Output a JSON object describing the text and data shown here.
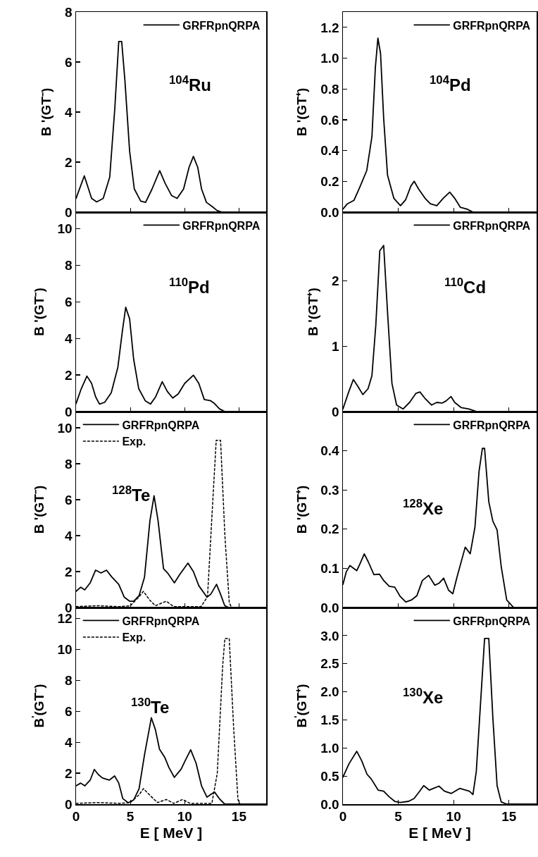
{
  "chart_data": [
    {
      "type": "line",
      "ylabel": "B '(GT⁻)",
      "annotations": [
        "$^{104}$Ru"
      ],
      "xlim": [
        0,
        17.5
      ],
      "xticks": [
        0,
        5,
        10,
        15
      ],
      "ylim": [
        0,
        8
      ],
      "yticks": [
        0,
        2,
        4,
        6,
        8
      ],
      "tick_labels": "y",
      "legend": "top right",
      "grid": false,
      "line_style": "solid",
      "series": [
        {
          "name": "GRFRpnQRPA",
          "color": "#000000",
          "x": [
            0,
            0.76,
            1.43,
            1.9,
            2.5,
            3.1,
            3.57,
            3.93,
            4.2,
            4.5,
            4.93,
            5.36,
            5.95,
            6.4,
            7.0,
            7.7,
            8.2,
            8.8,
            9.3,
            9.9,
            10.4,
            10.8,
            11.2,
            11.55,
            12.0,
            12.5,
            13.0,
            13.45,
            17.5
          ],
          "values": [
            0.55,
            1.45,
            0.55,
            0.41,
            0.55,
            1.4,
            4.17,
            6.82,
            6.82,
            5.25,
            2.44,
            0.93,
            0.44,
            0.39,
            0.93,
            1.66,
            1.15,
            0.66,
            0.55,
            0.93,
            1.79,
            2.23,
            1.79,
            0.93,
            0.39,
            0.23,
            0.06,
            0,
            0
          ]
        }
      ]
    },
    {
      "type": "line",
      "ylabel": "B '(GT⁺)",
      "annotations": [
        "$^{104}$Pd"
      ],
      "xlim": [
        0,
        17.5
      ],
      "xticks": [
        0,
        5,
        10,
        15
      ],
      "ylim": [
        0,
        1.3
      ],
      "yticks": [
        {
          "value": 0,
          "label": "0.0"
        },
        0.2,
        0.4,
        0.6,
        0.8,
        {
          "value": 1,
          "label": "1.0"
        },
        1.2
      ],
      "tick_labels": "y",
      "legend": "top right",
      "grid": false,
      "line_style": "solid",
      "series": [
        {
          "name": "GRFRpnQRPA",
          "color": "#000000",
          "x": [
            0,
            0.4,
            1.0,
            1.57,
            2.15,
            2.62,
            2.93,
            3.16,
            3.4,
            3.68,
            4.03,
            4.6,
            5.2,
            5.67,
            6.14,
            6.44,
            6.84,
            7.42,
            7.9,
            8.48,
            9.06,
            9.65,
            10.1,
            10.6,
            11.2,
            11.76,
            17.5
          ],
          "values": [
            0.02,
            0.054,
            0.077,
            0.17,
            0.27,
            0.49,
            0.94,
            1.13,
            1.03,
            0.61,
            0.24,
            0.09,
            0.042,
            0.081,
            0.17,
            0.2,
            0.15,
            0.09,
            0.054,
            0.042,
            0.09,
            0.13,
            0.09,
            0.032,
            0.02,
            0,
            0
          ]
        }
      ]
    },
    {
      "type": "line",
      "ylabel": "B '(GT⁻)",
      "annotations": [
        "$^{110}$Pd"
      ],
      "xlim": [
        0,
        17.5
      ],
      "xticks": [
        0,
        5,
        10,
        15
      ],
      "ylim": [
        0,
        10.9
      ],
      "yticks": [
        0,
        2,
        4,
        6,
        8,
        10
      ],
      "tick_labels": "y",
      "legend": "top right",
      "grid": false,
      "line_style": "solid",
      "series": [
        {
          "name": "GRFRpnQRPA",
          "color": "#000000",
          "x": [
            0,
            0.48,
            1.0,
            1.43,
            1.8,
            2.16,
            2.64,
            3.24,
            3.85,
            4.25,
            4.57,
            4.93,
            5.3,
            5.77,
            6.37,
            6.85,
            7.33,
            7.93,
            8.4,
            8.9,
            9.4,
            10.0,
            10.8,
            11.3,
            11.8,
            12.4,
            12.74,
            13.2,
            13.7,
            17.5
          ],
          "values": [
            0.44,
            1.25,
            1.94,
            1.54,
            0.81,
            0.41,
            0.51,
            1.03,
            2.43,
            4.34,
            5.7,
            5.07,
            2.87,
            1.25,
            0.59,
            0.41,
            0.81,
            1.63,
            1.1,
            0.74,
            0.96,
            1.54,
            1.99,
            1.54,
            0.66,
            0.59,
            0.44,
            0.15,
            0,
            0
          ]
        }
      ]
    },
    {
      "type": "line",
      "ylabel": "B '(GT⁺)",
      "annotations": [
        "$^{110}$Cd"
      ],
      "xlim": [
        0,
        17.5
      ],
      "xticks": [
        0,
        5,
        10,
        15
      ],
      "ylim": [
        0,
        3.05
      ],
      "yticks": [
        0,
        1,
        2
      ],
      "tick_labels": "y",
      "legend": "top right",
      "grid": false,
      "line_style": "solid",
      "series": [
        {
          "name": "GRFRpnQRPA",
          "color": "#000000",
          "x": [
            0,
            0.52,
            0.94,
            1.33,
            1.8,
            2.27,
            2.62,
            2.97,
            3.33,
            3.68,
            4.03,
            4.43,
            4.85,
            5.43,
            6.02,
            6.6,
            6.96,
            7.42,
            8.0,
            8.48,
            8.95,
            9.3,
            9.77,
            10.1,
            10.7,
            11.4,
            12.1,
            17.5
          ],
          "values": [
            0.04,
            0.3,
            0.49,
            0.39,
            0.26,
            0.35,
            0.55,
            1.32,
            2.46,
            2.54,
            1.52,
            0.43,
            0.1,
            0.04,
            0.14,
            0.28,
            0.3,
            0.2,
            0.1,
            0.14,
            0.13,
            0.16,
            0.23,
            0.14,
            0.06,
            0.04,
            0,
            0
          ]
        }
      ]
    },
    {
      "type": "line",
      "ylabel": "B '(GT⁻)",
      "annotations": [
        "$^{128}$Te"
      ],
      "xlim": [
        0,
        17.5
      ],
      "xticks": [
        0,
        5,
        10,
        15
      ],
      "ylim": [
        0,
        10.9
      ],
      "yticks": [
        0,
        2,
        4,
        6,
        8,
        10
      ],
      "tick_labels": "y",
      "legend": "top left",
      "grid": false,
      "line_style": "solid",
      "series": [
        {
          "name": "GRFRpnQRPA",
          "color": "#000000",
          "x": [
            0,
            0.43,
            0.8,
            1.3,
            1.8,
            2.3,
            2.8,
            3.3,
            3.93,
            4.43,
            4.93,
            5.3,
            5.8,
            6.3,
            6.8,
            7.18,
            7.55,
            8.05,
            8.43,
            9.05,
            9.55,
            10.3,
            10.8,
            11.3,
            12.05,
            12.4,
            12.93,
            13.3,
            13.68,
            14.05,
            17.5
          ],
          "values": [
            0.9,
            1.13,
            0.98,
            1.37,
            2.08,
            1.92,
            2.08,
            1.69,
            1.29,
            0.58,
            0.35,
            0.35,
            0.66,
            1.69,
            4.83,
            6.22,
            4.83,
            2.16,
            1.92,
            1.37,
            1.84,
            2.47,
            2.0,
            1.21,
            0.58,
            0.74,
            1.29,
            0.74,
            0.11,
            0,
            0
          ]
        },
        {
          "name": "Exp.",
          "color": "#000000",
          "line_style": "dotted",
          "x": [
            0,
            2,
            4,
            5,
            5.8,
            6.2,
            6.8,
            7.3,
            8.3,
            9,
            11.5,
            12.1,
            12.5,
            12.9,
            13.3,
            13.7,
            14.1,
            14.3,
            17.5
          ],
          "values": [
            0.05,
            0.1,
            0.05,
            0.1,
            0.6,
            0.9,
            0.4,
            0.1,
            0.35,
            0.05,
            0.05,
            0.6,
            5,
            9.3,
            9.3,
            4,
            0.3,
            0,
            0
          ]
        }
      ]
    },
    {
      "type": "line",
      "ylabel": "B '(GT⁺)",
      "annotations": [
        "$^{128}$Xe"
      ],
      "xlim": [
        0,
        17.5
      ],
      "xticks": [
        0,
        5,
        10,
        15
      ],
      "ylim": [
        0,
        0.5
      ],
      "yticks": [
        {
          "value": 0,
          "label": "0.0"
        },
        0.1,
        0.2,
        0.3,
        0.4
      ],
      "tick_labels": "y",
      "legend": "top right",
      "grid": false,
      "line_style": "solid",
      "series": [
        {
          "name": "GRFRpnQRPA",
          "color": "#000000",
          "x": [
            0,
            0.3,
            0.63,
            1.25,
            1.55,
            1.93,
            2.3,
            2.8,
            3.3,
            3.68,
            4.18,
            4.68,
            5.18,
            5.68,
            6.18,
            6.68,
            7.18,
            7.75,
            8.3,
            8.68,
            9.1,
            9.55,
            9.93,
            10.3,
            11.05,
            11.5,
            11.93,
            12.3,
            12.6,
            12.8,
            13.18,
            13.55,
            13.93,
            14.3,
            14.8,
            15.43,
            17.5
          ],
          "values": [
            0.059,
            0.091,
            0.107,
            0.094,
            0.112,
            0.137,
            0.116,
            0.084,
            0.085,
            0.069,
            0.054,
            0.052,
            0.028,
            0.014,
            0.019,
            0.03,
            0.069,
            0.082,
            0.057,
            0.062,
            0.075,
            0.044,
            0.035,
            0.077,
            0.154,
            0.137,
            0.205,
            0.348,
            0.406,
            0.406,
            0.27,
            0.22,
            0.198,
            0.105,
            0.019,
            0,
            0
          ]
        }
      ]
    },
    {
      "type": "line",
      "xlabel": "E [ MeV ]",
      "ylabel": "B$^{'}$(GT⁻)",
      "annotations": [
        "$^{130}$Te"
      ],
      "xlim": [
        0,
        17.5
      ],
      "xticks": [
        0,
        5,
        10,
        15
      ],
      "ylim": [
        0,
        12.7
      ],
      "yticks": [
        0,
        2,
        4,
        6,
        8,
        10,
        12
      ],
      "legend": "top left",
      "grid": false,
      "line_style": "solid",
      "series": [
        {
          "name": "GRFRpnQRPA",
          "color": "#000000",
          "x": [
            0,
            0.43,
            0.8,
            1.3,
            1.68,
            2.05,
            2.43,
            3.05,
            3.55,
            3.93,
            4.3,
            4.8,
            5.3,
            5.8,
            6.3,
            6.93,
            7.3,
            7.68,
            8.18,
            8.55,
            9.05,
            9.68,
            10.05,
            10.55,
            11.05,
            11.55,
            12.05,
            12.43,
            12.75,
            13.18,
            13.68,
            17.5
          ],
          "values": [
            1.18,
            1.36,
            1.18,
            1.55,
            2.24,
            1.91,
            1.69,
            1.55,
            1.82,
            1.36,
            0.36,
            0.09,
            0.27,
            1.0,
            3.18,
            5.58,
            4.82,
            3.55,
            3.0,
            2.36,
            1.73,
            2.27,
            2.82,
            3.51,
            2.64,
            1.18,
            0.45,
            0.64,
            0.78,
            0.36,
            0,
            0
          ]
        },
        {
          "name": "Exp.",
          "color": "#000000",
          "line_style": "dotted",
          "x": [
            0,
            2,
            4,
            5,
            5.8,
            6.2,
            6.9,
            7.5,
            8.3,
            9,
            9.8,
            10.5,
            12.5,
            13,
            13.5,
            13.7,
            14.1,
            14.5,
            14.9,
            15.1,
            17.5
          ],
          "values": [
            0.05,
            0.1,
            0.05,
            0.1,
            0.6,
            1.0,
            0.5,
            0.1,
            0.3,
            0.05,
            0.3,
            0.05,
            0.05,
            2,
            9,
            10.7,
            10.7,
            5,
            0.3,
            0,
            0
          ]
        }
      ]
    },
    {
      "type": "line",
      "xlabel": "E [ MeV ]",
      "ylabel": "B$^{'}$(GT⁺)",
      "annotations": [
        "$^{130}$Xe"
      ],
      "xlim": [
        0,
        17.5
      ],
      "xticks": [
        0,
        5,
        10,
        15
      ],
      "ylim": [
        0,
        3.5
      ],
      "yticks": [
        {
          "value": 0,
          "label": "0.0"
        },
        0.5,
        {
          "value": 1,
          "label": "1.0"
        },
        1.5,
        {
          "value": 2,
          "label": "2.0"
        },
        2.5,
        {
          "value": 3,
          "label": "3.0"
        }
      ],
      "legend": "top right",
      "grid": false,
      "line_style": "solid",
      "series": [
        {
          "name": "GRFRpnQRPA",
          "color": "#000000",
          "x": [
            0,
            0.55,
            1.25,
            1.68,
            2.18,
            2.55,
            3.18,
            3.68,
            4.18,
            4.68,
            5.18,
            5.93,
            6.43,
            6.93,
            7.3,
            7.8,
            8.18,
            8.68,
            9.18,
            9.8,
            10.55,
            11.43,
            11.75,
            12.05,
            12.43,
            12.8,
            13.18,
            13.55,
            13.93,
            14.3,
            14.8,
            17.5
          ],
          "values": [
            0.48,
            0.72,
            0.94,
            0.78,
            0.53,
            0.45,
            0.25,
            0.23,
            0.13,
            0.05,
            0.03,
            0.05,
            0.1,
            0.23,
            0.33,
            0.25,
            0.28,
            0.32,
            0.23,
            0.19,
            0.28,
            0.23,
            0.17,
            0.58,
            1.78,
            2.95,
            2.95,
            1.53,
            0.33,
            0.04,
            0,
            0
          ]
        }
      ]
    }
  ]
}
